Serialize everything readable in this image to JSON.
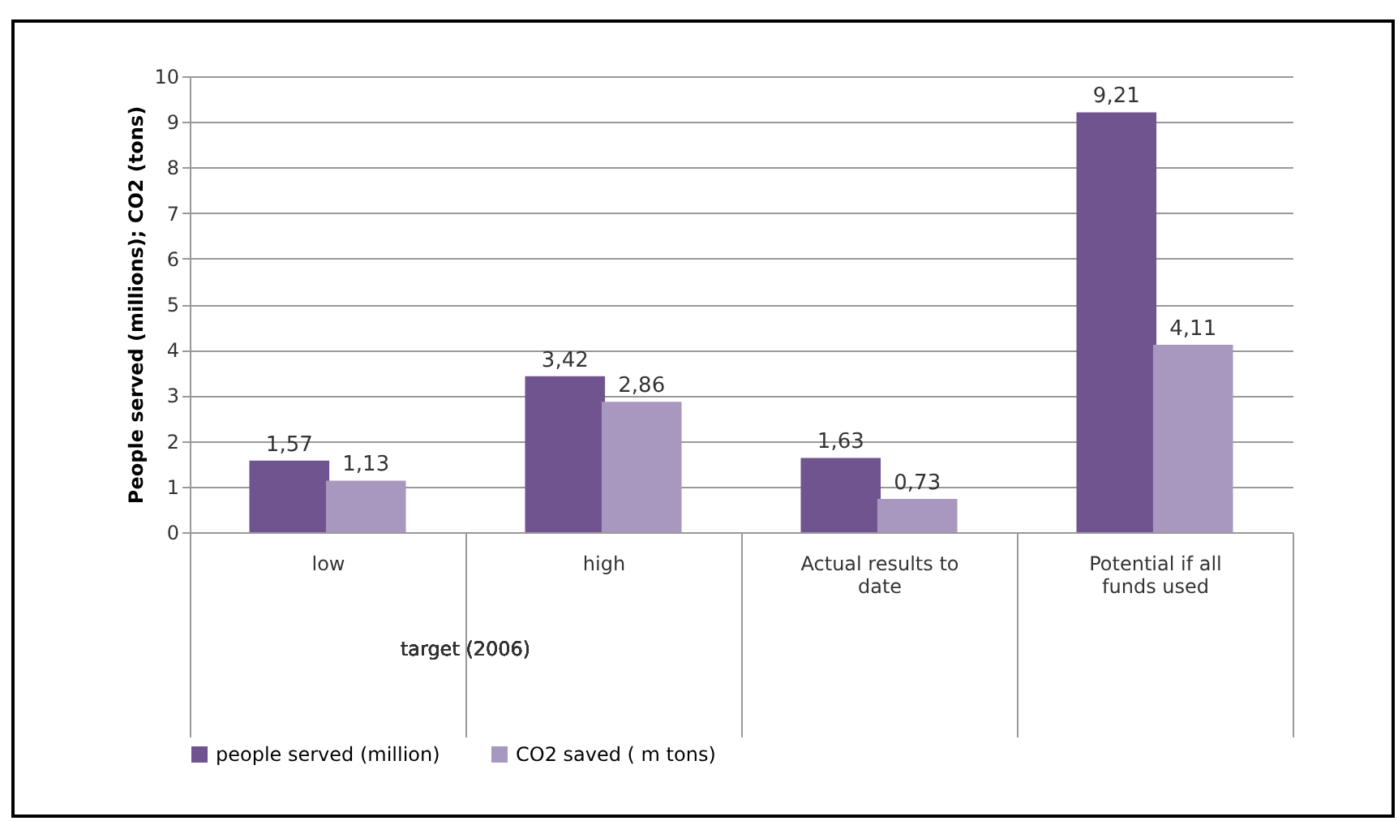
{
  "chart_data": {
    "type": "bar",
    "ylabel": "People served (millions);  CO2 (tons)",
    "categories": [
      "low",
      "high",
      "Actual results to date",
      "Potential if all funds used"
    ],
    "series": [
      {
        "name": "people served (million)",
        "color": "#705490",
        "values": [
          1.57,
          3.42,
          1.63,
          9.21
        ],
        "value_labels": [
          "1,57",
          "3,42",
          "1,63",
          "9,21"
        ]
      },
      {
        "name": "CO2 saved ( m tons)",
        "color": "#a897bf",
        "values": [
          1.13,
          2.86,
          0.73,
          4.11
        ],
        "value_labels": [
          "1,13",
          "2,86",
          "0,73",
          "4,11"
        ]
      }
    ],
    "annotations": [
      "target (2006)"
    ],
    "ylim": [
      0,
      10
    ],
    "yticks": [
      0,
      1,
      2,
      3,
      4,
      5,
      6,
      7,
      8,
      9,
      10
    ],
    "grid": true,
    "legend": "bottom"
  }
}
